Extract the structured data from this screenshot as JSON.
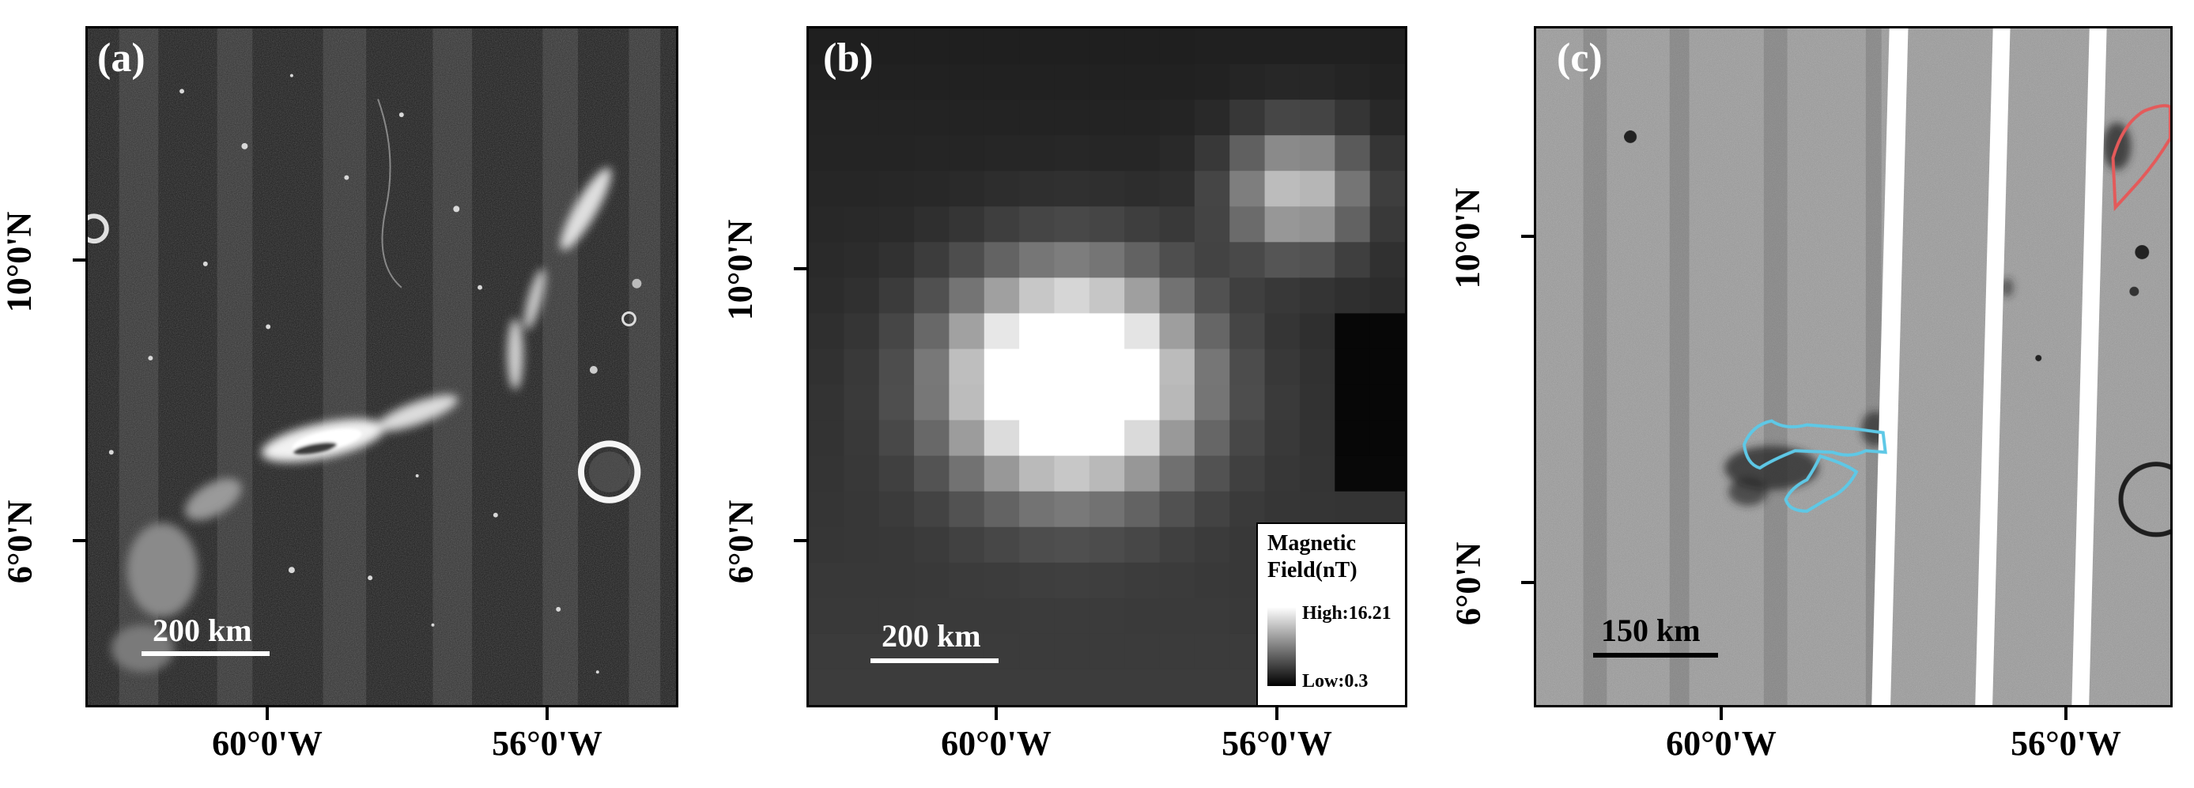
{
  "panels": [
    {
      "label": "(a)",
      "scale_label": "200 km",
      "x_ticks": [
        "60°0'W",
        "56°0'W"
      ],
      "y_ticks": [
        "10°0'N",
        "6°0'N"
      ]
    },
    {
      "label": "(b)",
      "scale_label": "200 km",
      "x_ticks": [
        "60°0'W",
        "56°0'W"
      ],
      "y_ticks": [
        "10°0'N",
        "6°0'N"
      ],
      "legend": {
        "title_line1": "Magnetic",
        "title_line2": "Field(nT)",
        "high": "High:16.21",
        "low": "Low:0.3"
      }
    },
    {
      "label": "(c)",
      "scale_label": "150 km",
      "x_ticks": [
        "60°0'W",
        "56°0'W"
      ],
      "y_ticks": [
        "10°0'N",
        "6°0'N"
      ],
      "outline_colors": {
        "blue": "#5ec8e6",
        "red": "#e45a5a"
      }
    }
  ],
  "colors": {
    "frame": "#000000",
    "background": "#ffffff"
  }
}
